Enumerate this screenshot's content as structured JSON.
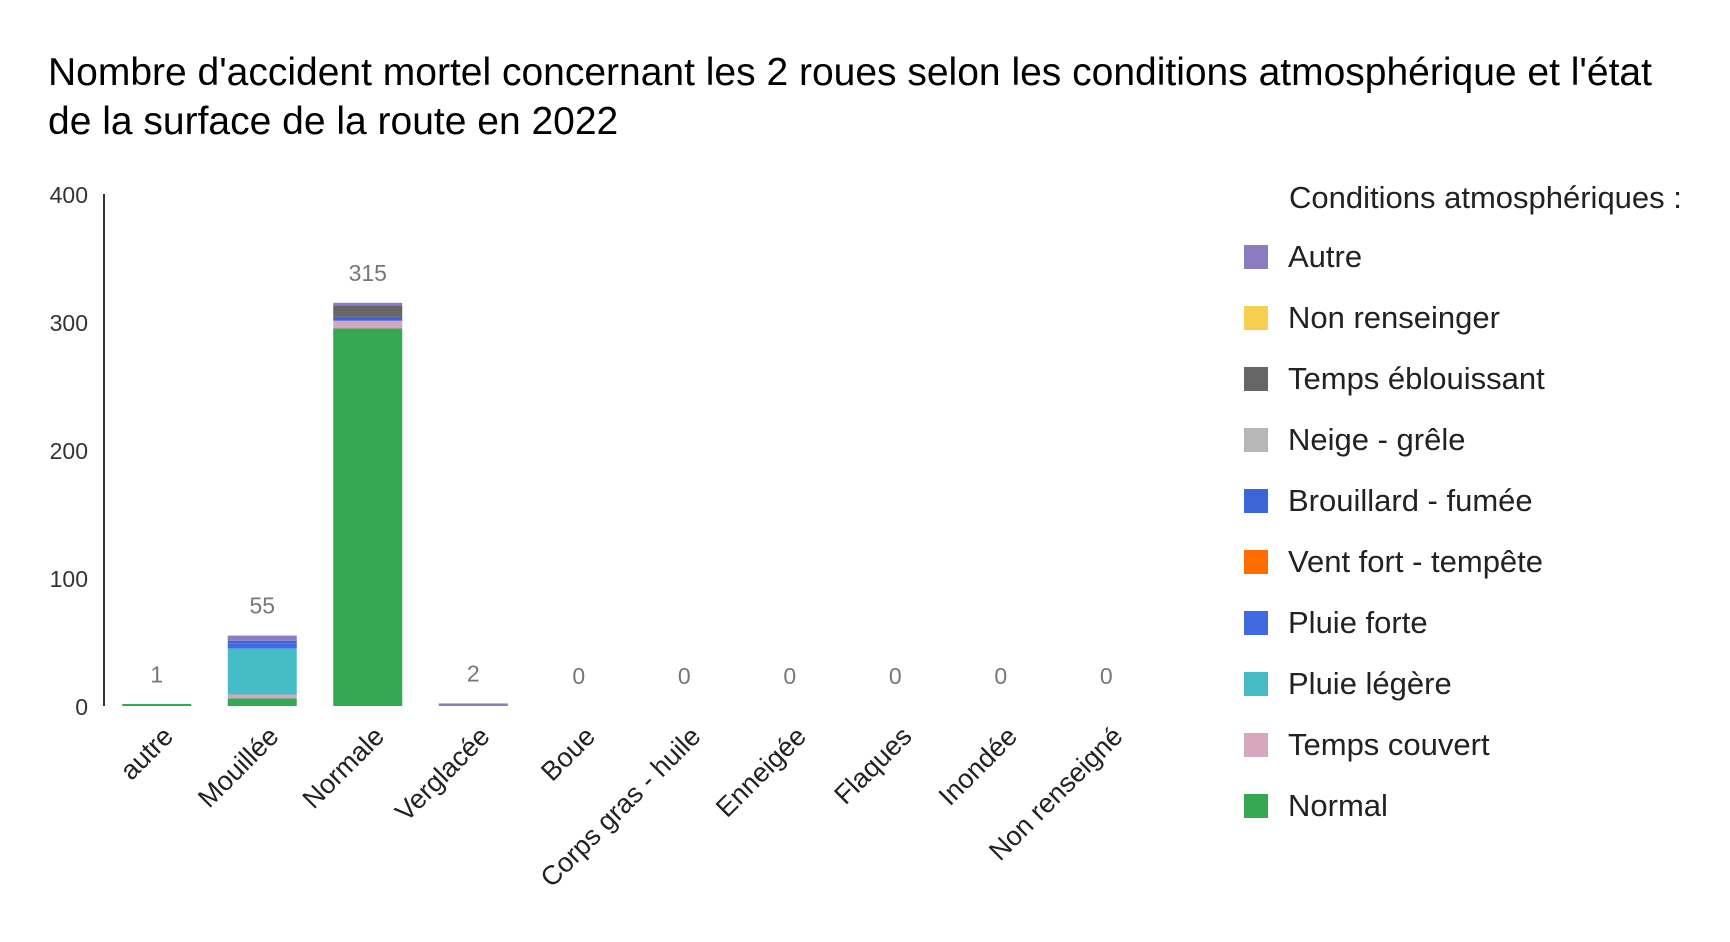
{
  "chart_data": {
    "type": "bar",
    "stacked": true,
    "title": "Nombre d'accident mortel concernant les 2 roues selon les conditions atmosphérique et l'état de la surface de la route en 2022",
    "xlabel": "",
    "ylabel": "",
    "ylim": [
      0,
      400
    ],
    "yticks": [
      "0",
      "100",
      "200",
      "300",
      "400"
    ],
    "ytick_values": [
      0,
      100,
      200,
      300,
      400
    ],
    "grid": false,
    "legend_position": "right",
    "legend_title": "Conditions atmosphériques :",
    "categories": [
      "autre",
      "Mouillée",
      "Normale",
      "Verglacée",
      "Boue",
      "Corps gras - huile",
      "Enneigée",
      "Flaques",
      "Inondée",
      "Non renseigné"
    ],
    "totals": [
      1,
      55,
      315,
      2,
      0,
      0,
      0,
      0,
      0,
      0
    ],
    "total_labels": [
      "1",
      "55",
      "315",
      "2",
      "0",
      "0",
      "0",
      "0",
      "0",
      "0"
    ],
    "series": [
      {
        "name": "Normal",
        "color": "#34a853",
        "values": [
          1,
          6,
          295,
          0,
          0,
          0,
          0,
          0,
          0,
          0
        ]
      },
      {
        "name": "Temps couvert",
        "color": "#d5a6bd",
        "values": [
          0,
          3,
          6,
          0,
          0,
          0,
          0,
          0,
          0,
          0
        ]
      },
      {
        "name": "Pluie légère",
        "color": "#46bdc6",
        "values": [
          0,
          36,
          0,
          0,
          0,
          0,
          0,
          0,
          0,
          0
        ]
      },
      {
        "name": "Pluie forte",
        "color": "#4169e1",
        "values": [
          0,
          4,
          0,
          0,
          0,
          0,
          0,
          0,
          0,
          0
        ]
      },
      {
        "name": "Vent fort - tempête",
        "color": "#ff6d01",
        "values": [
          0,
          0,
          0,
          0,
          0,
          0,
          0,
          0,
          0,
          0
        ]
      },
      {
        "name": "Brouillard - fumée",
        "color": "#3c66d8",
        "values": [
          0,
          2,
          3,
          0,
          0,
          0,
          0,
          0,
          0,
          0
        ]
      },
      {
        "name": "Neige - grêle",
        "color": "#b7b7b7",
        "values": [
          0,
          0,
          0,
          0,
          0,
          0,
          0,
          0,
          0,
          0
        ]
      },
      {
        "name": "Temps éblouissant",
        "color": "#666666",
        "values": [
          0,
          0,
          9,
          0,
          0,
          0,
          0,
          0,
          0,
          0
        ]
      },
      {
        "name": "Non renseinger",
        "color": "#f6cf4e",
        "values": [
          0,
          0,
          0,
          0,
          0,
          0,
          0,
          0,
          0,
          0
        ]
      },
      {
        "name": "Autre",
        "color": "#8e7cc3",
        "values": [
          0,
          4,
          2,
          2,
          0,
          0,
          0,
          0,
          0,
          0
        ]
      }
    ]
  }
}
